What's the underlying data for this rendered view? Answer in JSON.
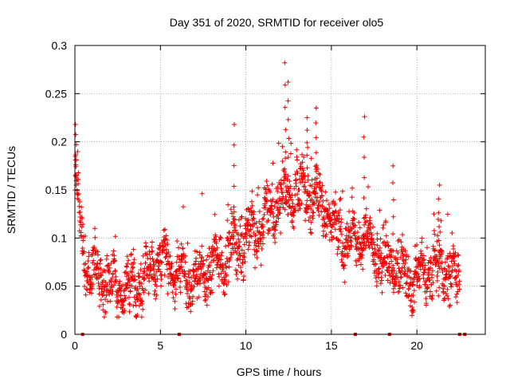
{
  "chart_data": {
    "type": "scatter",
    "title": "Day 351 of 2020, SRMTID for receiver olo5",
    "xlabel": "GPS time / hours",
    "ylabel": "SRMTID / TECUs",
    "xlim": [
      0,
      24
    ],
    "ylim": [
      0,
      0.3
    ],
    "x_ticks": [
      0,
      5,
      10,
      15,
      20
    ],
    "y_ticks": [
      0,
      0.05,
      0.1,
      0.15,
      0.2,
      0.25,
      0.3
    ],
    "x_tick_labels": [
      "0",
      "5",
      "10",
      "15",
      "20"
    ],
    "y_tick_labels": [
      "0",
      "0.05",
      "0.1",
      "0.15",
      "0.2",
      "0.25",
      "0.3"
    ],
    "grid": true,
    "marker": "plus",
    "color": "#ee0000",
    "envelope_x": [
      0,
      0.2,
      0.4,
      0.6,
      1,
      2,
      3,
      4,
      5,
      6,
      7,
      8,
      9,
      10,
      11,
      12,
      13,
      14,
      15,
      16,
      17,
      18,
      19,
      20,
      21,
      22,
      22.5
    ],
    "envelope_y": [
      0.16,
      0.14,
      0.1,
      0.07,
      0.065,
      0.05,
      0.045,
      0.06,
      0.075,
      0.065,
      0.055,
      0.07,
      0.085,
      0.1,
      0.115,
      0.14,
      0.15,
      0.145,
      0.12,
      0.095,
      0.1,
      0.075,
      0.065,
      0.06,
      0.07,
      0.065,
      0.055
    ],
    "spread": 0.02,
    "peaks": [
      {
        "x": 0.05,
        "y": 0.218
      },
      {
        "x": 9.3,
        "y": 0.218
      },
      {
        "x": 12.3,
        "y": 0.282
      },
      {
        "x": 12.5,
        "y": 0.262
      },
      {
        "x": 13.6,
        "y": 0.225
      },
      {
        "x": 14.1,
        "y": 0.235
      },
      {
        "x": 16.9,
        "y": 0.226
      },
      {
        "x": 18.6,
        "y": 0.175
      },
      {
        "x": 21.3,
        "y": 0.155
      }
    ],
    "zero_markers": [
      0.45,
      6.1,
      16.4,
      18.4,
      22.5,
      22.8
    ]
  }
}
